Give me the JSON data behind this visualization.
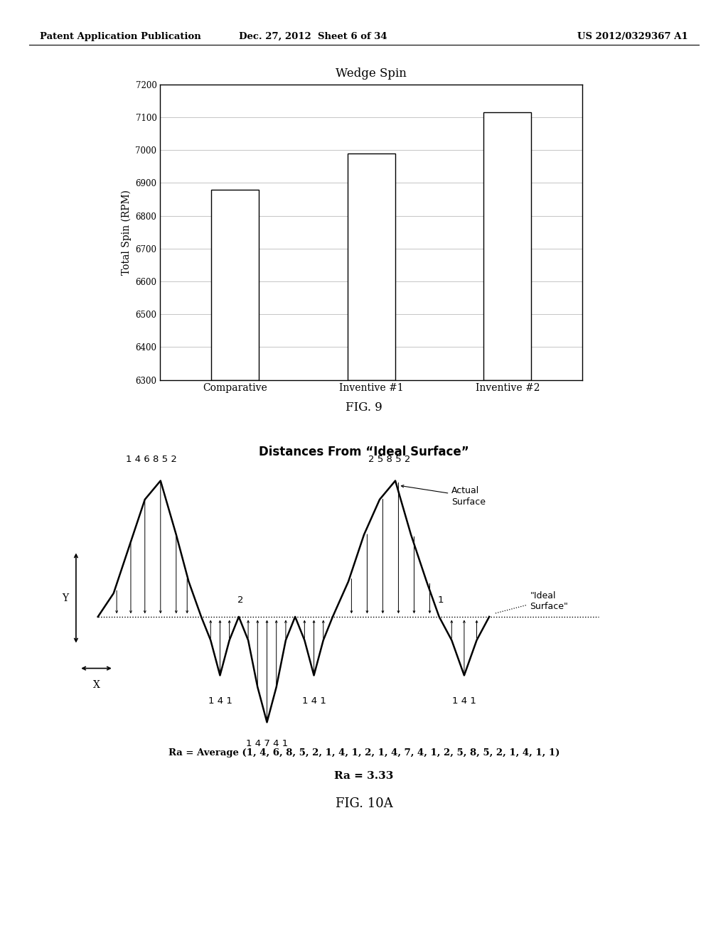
{
  "header_left": "Patent Application Publication",
  "header_mid": "Dec. 27, 2012  Sheet 6 of 34",
  "header_right": "US 2012/0329367 A1",
  "fig9_title": "Wedge Spin",
  "fig9_xlabel_labels": [
    "Comparative",
    "Inventive #1",
    "Inventive #2"
  ],
  "fig9_values": [
    6880,
    6990,
    7115
  ],
  "fig9_ylabel": "Total Spin (RPM)",
  "fig9_ylim": [
    6300,
    7200
  ],
  "fig9_yticks": [
    6300,
    6400,
    6500,
    6600,
    6700,
    6800,
    6900,
    7000,
    7100,
    7200
  ],
  "fig9_label": "FIG. 9",
  "fig10_title": "Distances From “Ideal Surface”",
  "fig10_label": "FIG. 10A",
  "fig10_ra_line1": "Ra = Average (1, 4, 6, 8, 5, 2, 1, 4, 1, 2, 1, 4, 7, 4, 1, 2, 5, 8, 5, 2, 1, 4, 1, 1)",
  "fig10_ra_line2": "Ra = 3.33",
  "bg_color": "#ffffff",
  "bar_color": "#ffffff",
  "bar_edge_color": "#000000",
  "text_color": "#000000",
  "grid_color": "#bbbbbb"
}
